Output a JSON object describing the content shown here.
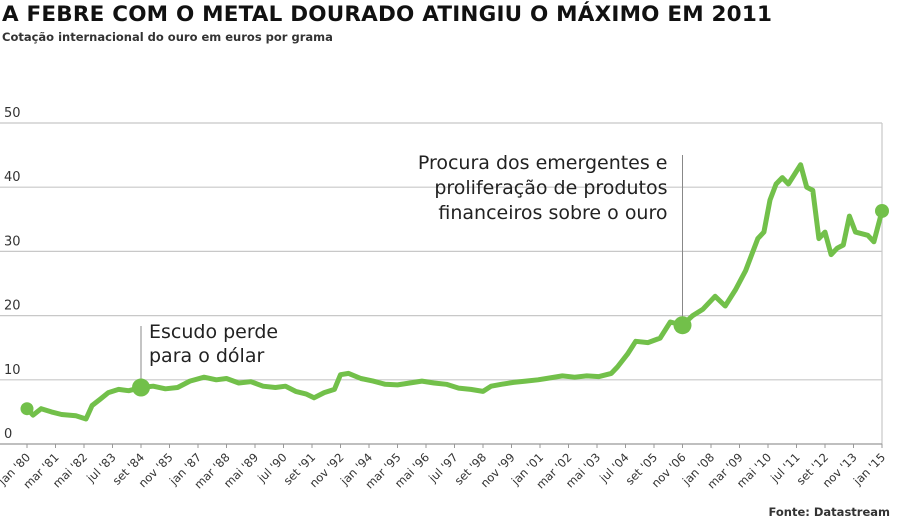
{
  "header": {
    "title": "A FEBRE COM O METAL DOURADO ATINGIU O MÁXIMO EM 2011",
    "subtitle": "Cotação internacional do ouro em euros por grama"
  },
  "footer": {
    "source": "Fonte: Datastream"
  },
  "colors": {
    "line": "#72c04a",
    "grid": "#c8c8c8",
    "axis": "#999999"
  },
  "chart_data": {
    "type": "line",
    "title": "A FEBRE COM O METAL DOURADO ATINGIU O MÁXIMO EM 2011",
    "ylim": [
      0,
      50
    ],
    "yticks": [
      0,
      10,
      20,
      30,
      40,
      50
    ],
    "grid": true,
    "x_tick_labels": [
      "jan '80",
      "mar '81",
      "mai '82",
      "jul '83",
      "set '84",
      "nov '85",
      "jan '87",
      "mar '88",
      "mai '89",
      "jul '90",
      "set '91",
      "nov '92",
      "jan '94",
      "mar '95",
      "mai '96",
      "jul '97",
      "set '98",
      "nov '99",
      "jan '01",
      "mar '02",
      "mai '03",
      "jul '04",
      "set '05",
      "nov '06",
      "jan '08",
      "mar '09",
      "mai '10",
      "jul '11",
      "set '12",
      "nov '13",
      "jan '15"
    ],
    "series": [
      {
        "points": [
          [
            "1980-01",
            5.5
          ],
          [
            "1980-04",
            4.5
          ],
          [
            "1980-08",
            5.5
          ],
          [
            "1981-01",
            5.0
          ],
          [
            "1981-06",
            4.6
          ],
          [
            "1982-01",
            4.4
          ],
          [
            "1982-06",
            3.9
          ],
          [
            "1982-09",
            6.0
          ],
          [
            "1983-01",
            7.0
          ],
          [
            "1983-05",
            8.0
          ],
          [
            "1983-10",
            8.5
          ],
          [
            "1984-03",
            8.3
          ],
          [
            "1984-09",
            8.8
          ],
          [
            "1985-03",
            9.0
          ],
          [
            "1985-09",
            8.6
          ],
          [
            "1986-03",
            8.8
          ],
          [
            "1986-09",
            9.8
          ],
          [
            "1987-04",
            10.4
          ],
          [
            "1987-10",
            10.0
          ],
          [
            "1988-03",
            10.2
          ],
          [
            "1988-09",
            9.5
          ],
          [
            "1989-03",
            9.7
          ],
          [
            "1989-09",
            9.0
          ],
          [
            "1990-03",
            8.8
          ],
          [
            "1990-08",
            9.0
          ],
          [
            "1991-01",
            8.2
          ],
          [
            "1991-06",
            7.8
          ],
          [
            "1991-10",
            7.2
          ],
          [
            "1992-03",
            8.0
          ],
          [
            "1992-08",
            8.5
          ],
          [
            "1992-11",
            10.8
          ],
          [
            "1993-03",
            11.0
          ],
          [
            "1993-09",
            10.2
          ],
          [
            "1994-03",
            9.8
          ],
          [
            "1994-09",
            9.3
          ],
          [
            "1995-03",
            9.2
          ],
          [
            "1995-09",
            9.5
          ],
          [
            "1996-03",
            9.8
          ],
          [
            "1996-09",
            9.5
          ],
          [
            "1997-03",
            9.3
          ],
          [
            "1997-09",
            8.7
          ],
          [
            "1998-03",
            8.5
          ],
          [
            "1998-09",
            8.2
          ],
          [
            "1999-01",
            9.0
          ],
          [
            "1999-06",
            9.3
          ],
          [
            "1999-12",
            9.6
          ],
          [
            "2000-06",
            9.8
          ],
          [
            "2000-12",
            10.0
          ],
          [
            "2001-06",
            10.3
          ],
          [
            "2001-12",
            10.6
          ],
          [
            "2002-06",
            10.4
          ],
          [
            "2002-12",
            10.6
          ],
          [
            "2003-06",
            10.5
          ],
          [
            "2003-12",
            11.0
          ],
          [
            "2004-03",
            12.0
          ],
          [
            "2004-08",
            14.0
          ],
          [
            "2004-12",
            16.0
          ],
          [
            "2005-06",
            15.8
          ],
          [
            "2005-12",
            16.5
          ],
          [
            "2006-05",
            19.0
          ],
          [
            "2006-11",
            18.5
          ],
          [
            "2007-04",
            20.0
          ],
          [
            "2007-09",
            21.0
          ],
          [
            "2008-03",
            23.0
          ],
          [
            "2008-08",
            21.5
          ],
          [
            "2009-01",
            24.0
          ],
          [
            "2009-06",
            27.0
          ],
          [
            "2009-12",
            32.0
          ],
          [
            "2010-03",
            33.0
          ],
          [
            "2010-06",
            38.0
          ],
          [
            "2010-09",
            40.5
          ],
          [
            "2010-12",
            41.5
          ],
          [
            "2011-03",
            40.5
          ],
          [
            "2011-06",
            42.0
          ],
          [
            "2011-09",
            43.5
          ],
          [
            "2011-12",
            40.0
          ],
          [
            "2012-03",
            39.5
          ],
          [
            "2012-06",
            32.0
          ],
          [
            "2012-09",
            33.0
          ],
          [
            "2012-12",
            29.5
          ],
          [
            "2013-03",
            30.5
          ],
          [
            "2013-06",
            31.0
          ],
          [
            "2013-09",
            35.5
          ],
          [
            "2013-12",
            33.0
          ],
          [
            "2014-06",
            32.5
          ],
          [
            "2014-09",
            31.5
          ],
          [
            "2015-01",
            36.3
          ]
        ]
      }
    ],
    "annotations": [
      {
        "date": "1984-09",
        "value": 8.8,
        "lines": [
          "Escudo perde",
          "para o dólar"
        ]
      },
      {
        "date": "2006-11",
        "value": 18.5,
        "lines": [
          "Procura dos emergentes e",
          "proliferação de produtos",
          "financeiros sobre o ouro"
        ]
      }
    ]
  }
}
